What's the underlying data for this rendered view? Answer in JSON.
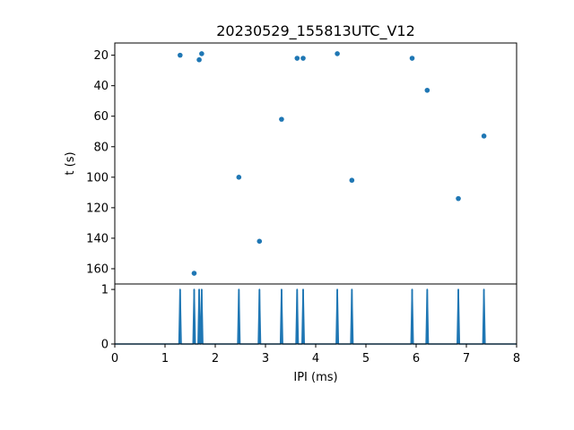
{
  "chart_data": [
    {
      "type": "scatter",
      "title": "20230529_155813UTC_V12",
      "xlabel": "",
      "ylabel": "t (s)",
      "xlim": [
        0,
        8
      ],
      "ylim": [
        170,
        12
      ],
      "y_inverted": true,
      "yticks": [
        20,
        40,
        60,
        80,
        100,
        120,
        140,
        160
      ],
      "color": "#1f77b4",
      "points": [
        {
          "x": 1.3,
          "y": 20
        },
        {
          "x": 1.58,
          "y": 163
        },
        {
          "x": 1.68,
          "y": 23
        },
        {
          "x": 1.73,
          "y": 19
        },
        {
          "x": 2.47,
          "y": 100
        },
        {
          "x": 2.88,
          "y": 142
        },
        {
          "x": 3.32,
          "y": 62
        },
        {
          "x": 3.63,
          "y": 22
        },
        {
          "x": 3.75,
          "y": 22
        },
        {
          "x": 4.43,
          "y": 19
        },
        {
          "x": 4.72,
          "y": 102
        },
        {
          "x": 5.92,
          "y": 22
        },
        {
          "x": 6.22,
          "y": 43
        },
        {
          "x": 6.84,
          "y": 114
        },
        {
          "x": 7.35,
          "y": 73
        }
      ]
    },
    {
      "type": "line",
      "title": "",
      "xlabel": "IPI (ms)",
      "ylabel": "",
      "xlim": [
        0,
        8
      ],
      "ylim": [
        0,
        1.1
      ],
      "xticks": [
        0,
        1,
        2,
        3,
        4,
        5,
        6,
        7,
        8
      ],
      "yticks": [
        0,
        1
      ],
      "color": "#1f77b4",
      "impulses": [
        {
          "x": 1.3,
          "y": 1
        },
        {
          "x": 1.58,
          "y": 1
        },
        {
          "x": 1.68,
          "y": 1
        },
        {
          "x": 1.73,
          "y": 1
        },
        {
          "x": 2.47,
          "y": 1
        },
        {
          "x": 2.88,
          "y": 1
        },
        {
          "x": 3.32,
          "y": 1
        },
        {
          "x": 3.63,
          "y": 1
        },
        {
          "x": 3.75,
          "y": 1
        },
        {
          "x": 4.43,
          "y": 1
        },
        {
          "x": 4.72,
          "y": 1
        },
        {
          "x": 5.92,
          "y": 1
        },
        {
          "x": 6.22,
          "y": 1
        },
        {
          "x": 6.84,
          "y": 1
        },
        {
          "x": 7.35,
          "y": 1
        }
      ]
    }
  ]
}
